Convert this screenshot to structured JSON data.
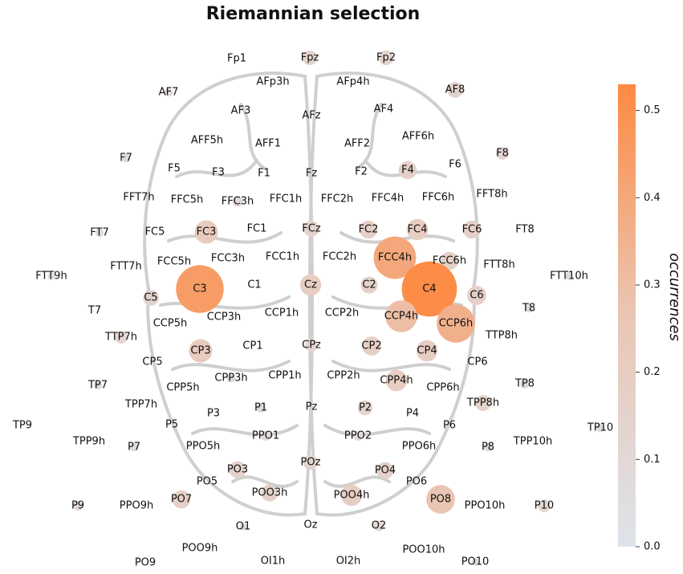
{
  "chart_data": {
    "type": "bubble",
    "title": "Riemannian selection",
    "categories": [
      "Fp1",
      "Fpz",
      "Fp2",
      "AFp3h",
      "AFp4h",
      "AF7",
      "AF8",
      "AF3",
      "AFz",
      "AF4",
      "AFF5h",
      "AFF1",
      "AFF2",
      "AFF6h",
      "F7",
      "F8",
      "F5",
      "F3",
      "F1",
      "Fz",
      "F2",
      "F4",
      "F6",
      "FFT7h",
      "FFC5h",
      "FFC3h",
      "FFC1h",
      "FFC2h",
      "FFC4h",
      "FFC6h",
      "FFT8h",
      "FT7",
      "FC5",
      "FC3",
      "FC1",
      "FCz",
      "FC2",
      "FC4",
      "FC6",
      "FT8",
      "FTT9h",
      "FTT7h",
      "FCC5h",
      "FCC3h",
      "FCC1h",
      "FCC2h",
      "FCC4h",
      "FCC6h",
      "FTT8h",
      "FTT10h",
      "C5",
      "C3",
      "C1",
      "Cz",
      "C2",
      "C4",
      "C6",
      "T7",
      "T8",
      "CCP5h",
      "CCP3h",
      "CCP1h",
      "CCP2h",
      "CCP4h",
      "CCP6h",
      "TTP7h",
      "TTP8h",
      "CP5",
      "CP3",
      "CP1",
      "CPz",
      "CP2",
      "CP4",
      "CP6",
      "TP7",
      "TP8",
      "CPP5h",
      "CPP3h",
      "CPP1h",
      "CPP2h",
      "CPP4h",
      "CPP6h",
      "TPP7h",
      "TPP8h",
      "TP9",
      "TP10",
      "P5",
      "P3",
      "P1",
      "Pz",
      "P2",
      "P4",
      "P6",
      "TPP9h",
      "TPP10h",
      "P7",
      "P8",
      "PPO5h",
      "PPO1",
      "PPO2",
      "PPO6h",
      "PO3",
      "POz",
      "PO4",
      "PO5",
      "PO6",
      "PO7",
      "PO8",
      "POO3h",
      "POO4h",
      "P9",
      "P10",
      "PPO9h",
      "PPO10h",
      "O1",
      "Oz",
      "O2",
      "POO9h",
      "POO10h",
      "PO9",
      "OI1h",
      "OI2h",
      "PO10"
    ],
    "values": [
      0,
      0.14,
      0.14,
      0,
      0,
      0.08,
      0.15,
      0,
      0,
      0,
      0,
      0,
      0,
      0,
      0.08,
      0.12,
      0,
      0,
      0,
      0,
      0,
      0.17,
      0,
      0,
      0,
      0.1,
      0,
      0,
      0,
      0,
      0,
      0.08,
      0,
      0.22,
      0,
      0.15,
      0.17,
      0.2,
      0.17,
      0,
      0.07,
      0,
      0,
      0,
      0,
      0,
      0.4,
      0.17,
      0,
      0.07,
      0.15,
      0.45,
      0,
      0.2,
      0.16,
      0.52,
      0.18,
      0,
      0.08,
      0,
      0,
      0,
      0,
      0.3,
      0.36,
      0.12,
      0,
      0,
      0.22,
      0,
      0.12,
      0.18,
      0.2,
      0,
      0.08,
      0.09,
      0,
      0.08,
      0,
      0,
      0.2,
      0,
      0,
      0.15,
      0,
      0.08,
      0,
      0,
      0.09,
      0,
      0.14,
      0,
      0,
      0,
      0,
      0.08,
      0.08,
      0,
      0.09,
      0.09,
      0,
      0.16,
      0.14,
      0.16,
      0,
      0,
      0.17,
      0.27,
      0.16,
      0.2,
      0.09,
      0.12,
      0,
      0,
      0.07,
      0,
      0.1,
      0,
      0,
      0,
      0,
      0,
      0.07
    ],
    "colormap": [
      "#dde3ea",
      "#eac6b5",
      "#fd8a42"
    ],
    "colorbar_label": "occurrences",
    "ylim": [
      0,
      0.53
    ],
    "yticks": [
      {
        "value": 0,
        "label": "0.0"
      },
      0.1,
      0.2,
      0.3,
      0.4,
      0.5
    ]
  }
}
